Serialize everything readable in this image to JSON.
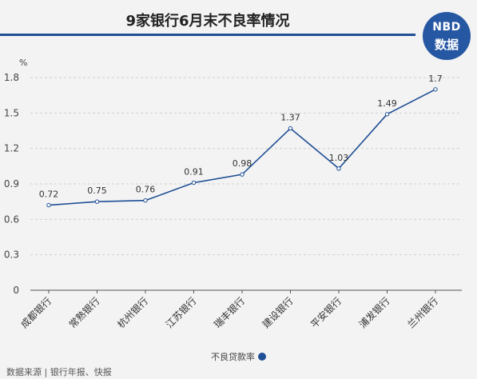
{
  "header": {
    "title": "9家银行6月末不良率情况",
    "logo_line1": "NBD",
    "logo_line2": "数据"
  },
  "footer": {
    "source": "数据来源 | 银行年报、快报"
  },
  "chart_data": {
    "type": "line",
    "title": "9家银行6月末不良率情况",
    "xlabel": "",
    "ylabel": "%",
    "categories": [
      "成都银行",
      "常熟银行",
      "杭州银行",
      "江苏银行",
      "瑞丰银行",
      "建设银行",
      "平安银行",
      "浦发银行",
      "兰州银行"
    ],
    "series": [
      {
        "name": "不良贷款率",
        "values": [
          0.72,
          0.75,
          0.76,
          0.91,
          0.98,
          1.37,
          1.03,
          1.49,
          1.7
        ],
        "labels": [
          "0.72",
          "0.75",
          "0.76",
          "0.91",
          "0.98",
          "1.37",
          "1.03",
          "1.49",
          "1.7"
        ],
        "color": "#1f4f95"
      }
    ],
    "yticks": [
      "0",
      "0.3",
      "0.6",
      "0.9",
      "1.2",
      "1.5",
      "1.8"
    ],
    "ylim": [
      0,
      1.8
    ],
    "grid": true,
    "legend_position": "bottom-center"
  }
}
